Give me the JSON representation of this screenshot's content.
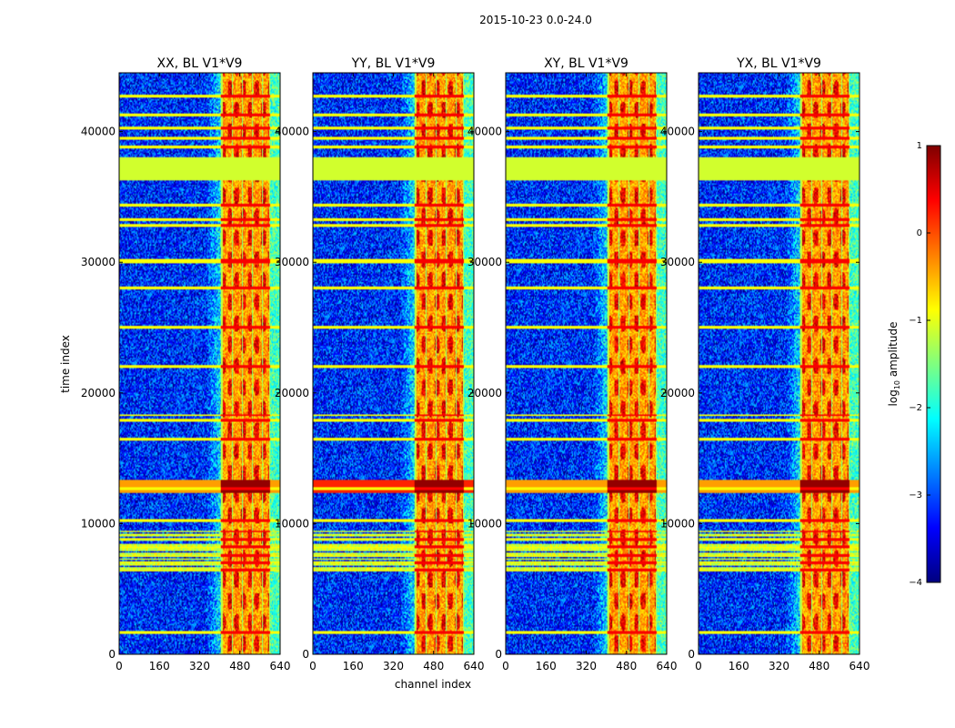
{
  "figure_title": "2015-10-23 0.0-24.0",
  "chart_data": {
    "type": "heatmap",
    "panels": [
      {
        "title": "XX, BL V1*V9",
        "pol": "XX"
      },
      {
        "title": "YY, BL V1*V9",
        "pol": "YY"
      },
      {
        "title": "XY, BL V1*V9",
        "pol": "XY"
      },
      {
        "title": "YX, BL V1*V9",
        "pol": "YX"
      }
    ],
    "xlabel": "channel index",
    "ylabel": "time index",
    "xlim": [
      0,
      640
    ],
    "ylim": [
      0,
      44500
    ],
    "xticks": [
      0,
      160,
      320,
      480,
      640
    ],
    "yticks": [
      0,
      10000,
      20000,
      30000,
      40000
    ],
    "colorbar": {
      "label_main": "log",
      "label_sub": "10",
      "label_rest": " amplitude",
      "range": [
        -4,
        1
      ],
      "ticks": [
        1,
        0,
        -1,
        -2,
        -3,
        -4
      ],
      "colormap": "jet",
      "colors": [
        "#00007f",
        "#0000ff",
        "#007fff",
        "#00ffff",
        "#7fff7f",
        "#ffff00",
        "#ff7f00",
        "#ff0000",
        "#7f0000"
      ]
    },
    "bright_channel_band": [
      405,
      600
    ],
    "bright_column_channels": [
      450,
      490,
      530,
      570
    ],
    "saturated_time_band": [
      36300,
      38000
    ],
    "flare_time_band": [
      12400,
      13400
    ],
    "rfi_time_rows": [
      1700,
      6400,
      7000,
      7600,
      8200,
      8800,
      9400,
      10200,
      12700,
      16500,
      17900,
      18300,
      22000,
      25000,
      28000,
      30000,
      30200,
      32800,
      33300,
      34400,
      38800,
      39500,
      40300,
      41300,
      42700
    ]
  }
}
